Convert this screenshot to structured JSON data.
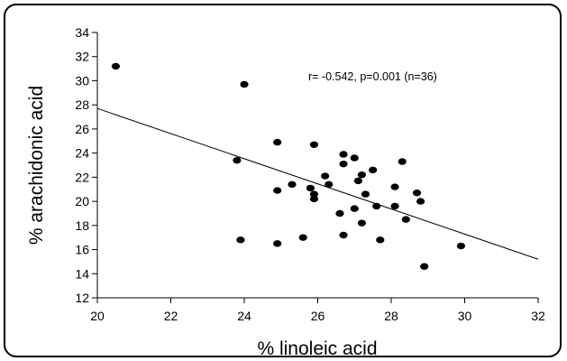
{
  "chart_data": {
    "type": "scatter",
    "title": "",
    "xlabel": "% linoleic acid",
    "ylabel": "% arachidonic acid",
    "xlim": [
      20,
      32
    ],
    "ylim": [
      12,
      34
    ],
    "xticks": [
      20,
      22,
      24,
      26,
      28,
      30,
      32
    ],
    "yticks": [
      12,
      14,
      16,
      18,
      20,
      22,
      24,
      26,
      28,
      30,
      32,
      34
    ],
    "grid": false,
    "annotation": "r= -0.542, p=0.001 (n=36)",
    "trendline": {
      "x": [
        20,
        32
      ],
      "y": [
        27.7,
        15.2
      ]
    },
    "points": [
      [
        20.5,
        31.2
      ],
      [
        24.0,
        29.7
      ],
      [
        23.8,
        23.4
      ],
      [
        23.9,
        16.8
      ],
      [
        24.9,
        24.9
      ],
      [
        24.9,
        20.9
      ],
      [
        24.9,
        16.5
      ],
      [
        25.3,
        21.4
      ],
      [
        25.6,
        17.0
      ],
      [
        25.8,
        21.1
      ],
      [
        25.9,
        24.7
      ],
      [
        25.9,
        20.6
      ],
      [
        25.9,
        20.2
      ],
      [
        26.2,
        22.1
      ],
      [
        26.3,
        21.4
      ],
      [
        26.6,
        19.0
      ],
      [
        26.7,
        23.9
      ],
      [
        26.7,
        23.1
      ],
      [
        26.7,
        17.2
      ],
      [
        27.0,
        23.6
      ],
      [
        27.0,
        19.4
      ],
      [
        27.1,
        21.7
      ],
      [
        27.2,
        22.2
      ],
      [
        27.2,
        18.2
      ],
      [
        27.3,
        20.6
      ],
      [
        27.5,
        22.6
      ],
      [
        27.6,
        19.6
      ],
      [
        27.7,
        16.8
      ],
      [
        28.1,
        21.2
      ],
      [
        28.1,
        19.6
      ],
      [
        28.3,
        23.3
      ],
      [
        28.4,
        18.5
      ],
      [
        28.7,
        20.7
      ],
      [
        28.8,
        20.0
      ],
      [
        28.9,
        14.6
      ],
      [
        29.9,
        16.3
      ]
    ]
  }
}
